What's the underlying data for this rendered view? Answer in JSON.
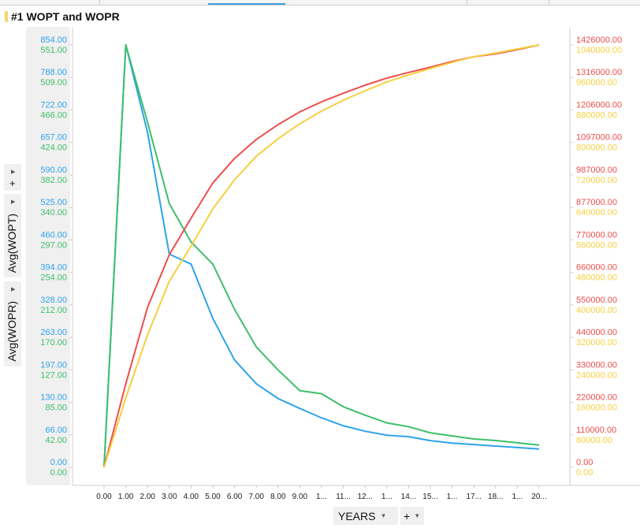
{
  "title": "#1 WOPT and WOPR",
  "left_controls": {
    "add_label": "+",
    "axis1_label": "Avg(WOPT)",
    "axis2_label": "Avg(WOPR)"
  },
  "x_controls": {
    "axis_label": "YEARS",
    "add_label": "+"
  },
  "chart_data": {
    "type": "line",
    "title": "#1 WOPT and WOPR",
    "xlabel": "YEARS",
    "x": [
      0,
      1,
      2,
      3,
      4,
      5,
      6,
      7,
      8,
      9,
      10,
      11,
      12,
      13,
      14,
      15,
      16,
      17,
      18,
      19,
      20
    ],
    "x_tick_labels": [
      "0.00",
      "1.00",
      "2.00",
      "3.00",
      "4.00",
      "5.00",
      "6.00",
      "7.00",
      "8.00",
      "9.00",
      "1...",
      "11...",
      "12...",
      "1...",
      "14...",
      "15...",
      "1...",
      "17...",
      "18...",
      "1...",
      "20..."
    ],
    "left_axes": [
      {
        "color": "#2ea3e8",
        "ylim": [
          0,
          854
        ],
        "ticks": [
          "854.00",
          "788.00",
          "722.00",
          "657.00",
          "590.00",
          "525.00",
          "460.00",
          "394.00",
          "328.00",
          "263.00",
          "197.00",
          "130.00",
          "66.00",
          "0.00"
        ]
      },
      {
        "color": "#3dbf6a",
        "ylim": [
          0,
          551
        ],
        "ticks": [
          "551.00",
          "509.00",
          "466.00",
          "424.00",
          "382.00",
          "340.00",
          "297.00",
          "254.00",
          "212.00",
          "170.00",
          "127.00",
          "85.00",
          "42.00",
          "0.00"
        ]
      }
    ],
    "right_axes": [
      {
        "color": "#ee4d4d",
        "ylim": [
          0,
          1426000
        ],
        "ticks": [
          "1426000.00",
          "1316000.00",
          "1206000.00",
          "1097000.00",
          "987000.00",
          "877000.00",
          "770000.00",
          "660000.00",
          "550000.00",
          "440000.00",
          "330000.00",
          "220000.00",
          "110000.00",
          "0.00"
        ]
      },
      {
        "color": "#f5d040",
        "ylim": [
          0,
          1040000
        ],
        "ticks": [
          "1040000.00",
          "960000.00",
          "880000.00",
          "800000.00",
          "720000.00",
          "640000.00",
          "560000.00",
          "480000.00",
          "400000.00",
          "320000.00",
          "240000.00",
          "160000.00",
          "80000.00",
          "0.00"
        ]
      }
    ],
    "series": [
      {
        "axis": "left0",
        "color": "#2ea3e8",
        "values": [
          0,
          854,
          677,
          431,
          411,
          301,
          217,
          169,
          139,
          119,
          100,
          84,
          73,
          65,
          62,
          54,
          49,
          46,
          43,
          40,
          37
        ]
      },
      {
        "axis": "left1",
        "color": "#3dbf6a",
        "values": [
          0,
          551,
          450,
          344,
          294,
          265,
          206,
          157,
          127,
          100,
          96,
          79,
          68,
          58,
          53,
          45,
          41,
          37,
          35,
          32,
          29
        ]
      },
      {
        "axis": "right0",
        "color": "#ee4d4d",
        "values": [
          0,
          282000,
          540000,
          718000,
          841000,
          960000,
          1043000,
          1107000,
          1157000,
          1200000,
          1234000,
          1263000,
          1290000,
          1314000,
          1333000,
          1351000,
          1370000,
          1386000,
          1396000,
          1410000,
          1426000
        ]
      },
      {
        "axis": "right1",
        "color": "#f5d040",
        "values": [
          0,
          171000,
          326000,
          458000,
          545000,
          636000,
          708000,
          766000,
          809000,
          846000,
          877000,
          904000,
          927000,
          949000,
          966000,
          982000,
          997000,
          1011000,
          1020000,
          1030000,
          1040000
        ]
      }
    ],
    "grid": false,
    "legend": "none"
  }
}
